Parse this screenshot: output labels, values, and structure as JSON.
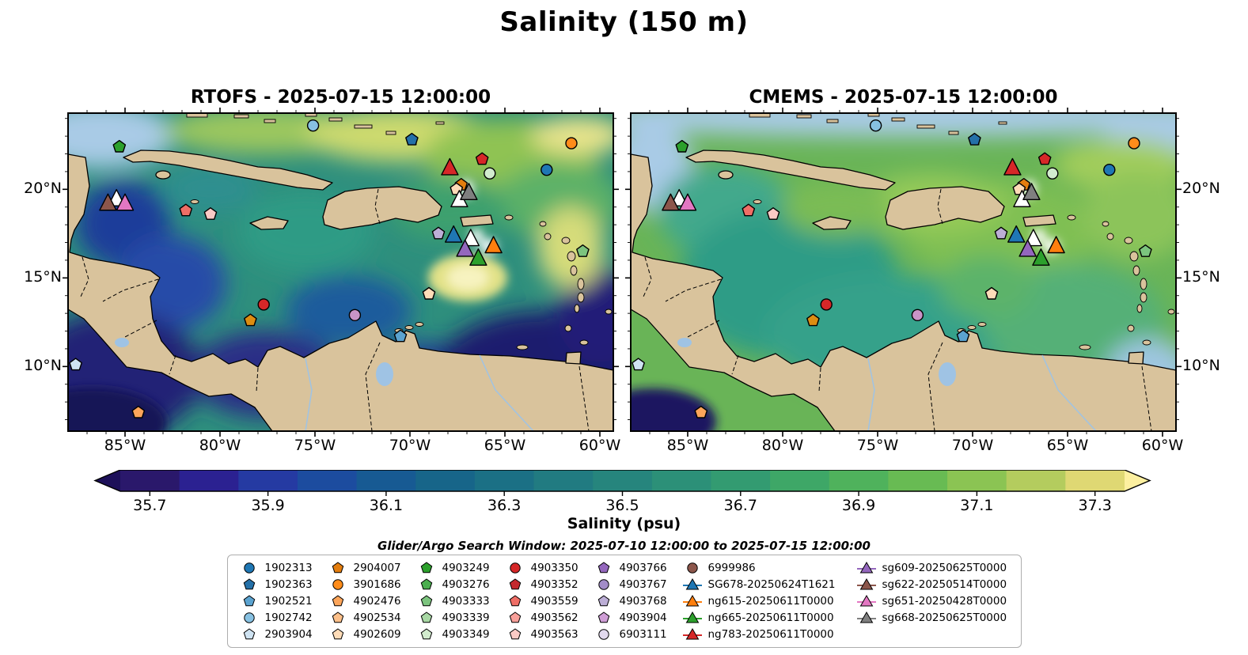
{
  "title": "Salinity (150 m)",
  "panels": [
    {
      "title": "RTOFS - 2025-07-15 12:00:00"
    },
    {
      "title": "CMEMS - 2025-07-15 12:00:00"
    }
  ],
  "axes": {
    "lat_ticks": [
      "20°N",
      "15°N",
      "10°N"
    ],
    "lon_ticks": [
      "85°W",
      "80°W",
      "75°W",
      "70°W",
      "65°W",
      "60°W"
    ]
  },
  "colorbar": {
    "label": "Salinity (psu)",
    "ticks": [
      "35.7",
      "35.9",
      "36.1",
      "36.3",
      "36.5",
      "36.7",
      "36.9",
      "37.1",
      "37.3"
    ],
    "segment_colors": [
      "#2a186b",
      "#2b2191",
      "#253aa2",
      "#1c4c9f",
      "#175a93",
      "#176589",
      "#1b7085",
      "#217b81",
      "#26857d",
      "#2c9078",
      "#339b71",
      "#3ea767",
      "#4fb25c",
      "#68bb53",
      "#8bc453",
      "#b4cc5e",
      "#dfd873"
    ],
    "under_color": "#1d1059",
    "over_color": "#fdf0a0"
  },
  "search_window": "Glider/Argo Search Window: 2025-07-10 12:00:00 to 2025-07-15 12:00:00",
  "legend": {
    "columns": [
      {
        "items": [
          {
            "label": "1902313",
            "marker": "circle",
            "color": "#1f77b4"
          },
          {
            "label": "1902363",
            "marker": "pentagon",
            "color": "#2470a8"
          },
          {
            "label": "1902521",
            "marker": "pentagon",
            "color": "#5ba3d0"
          },
          {
            "label": "1902742",
            "marker": "circle",
            "color": "#87c1e2"
          },
          {
            "label": "2903904",
            "marker": "pentagon",
            "color": "#cfe3f2"
          }
        ]
      },
      {
        "items": [
          {
            "label": "2904007",
            "marker": "pentagon",
            "color": "#e37d0e"
          },
          {
            "label": "3901686",
            "marker": "circle",
            "color": "#ff8c1a"
          },
          {
            "label": "4902476",
            "marker": "pentagon",
            "color": "#fca55a"
          },
          {
            "label": "4902534",
            "marker": "pentagon",
            "color": "#fdc08a"
          },
          {
            "label": "4902609",
            "marker": "pentagon",
            "color": "#fedcb8"
          }
        ]
      },
      {
        "items": [
          {
            "label": "4903249",
            "marker": "pentagon",
            "color": "#2ca02c"
          },
          {
            "label": "4903276",
            "marker": "pentagon",
            "color": "#4bae4f"
          },
          {
            "label": "4903333",
            "marker": "pentagon",
            "color": "#7cc47e"
          },
          {
            "label": "4903339",
            "marker": "pentagon",
            "color": "#a8d8a4"
          },
          {
            "label": "4903349",
            "marker": "pentagon",
            "color": "#d2ecce"
          }
        ]
      },
      {
        "items": [
          {
            "label": "4903350",
            "marker": "circle",
            "color": "#d62728"
          },
          {
            "label": "4903352",
            "marker": "pentagon",
            "color": "#c4292e"
          },
          {
            "label": "4903559",
            "marker": "pentagon",
            "color": "#ef6e66"
          },
          {
            "label": "4903562",
            "marker": "pentagon",
            "color": "#f79f99"
          },
          {
            "label": "4903563",
            "marker": "pentagon",
            "color": "#fbcac5"
          }
        ]
      },
      {
        "items": [
          {
            "label": "4903766",
            "marker": "pentagon",
            "color": "#9467bd"
          },
          {
            "label": "4903767",
            "marker": "circle",
            "color": "#a28cc8"
          },
          {
            "label": "4903768",
            "marker": "pentagon",
            "color": "#bcaed6"
          },
          {
            "label": "4903904",
            "marker": "pentagon",
            "color": "#cf9ed6"
          },
          {
            "label": "6903111",
            "marker": "circle",
            "color": "#e2d9ee"
          }
        ]
      },
      {
        "items": [
          {
            "label": "6999986",
            "marker": "circle",
            "color": "#8c564b"
          },
          {
            "label": "SG678-20250624T1621",
            "marker": "triangle-line",
            "color": "#1f77b4"
          },
          {
            "label": "ng615-20250611T0000",
            "marker": "triangle-line",
            "color": "#ff7f0e"
          },
          {
            "label": "ng665-20250611T0000",
            "marker": "triangle-line",
            "color": "#2ca02c"
          },
          {
            "label": "ng783-20250611T0000",
            "marker": "triangle-line",
            "color": "#d62728"
          }
        ]
      },
      {
        "items": [
          {
            "label": "sg609-20250625T0000",
            "marker": "triangle-line",
            "color": "#9467bd"
          },
          {
            "label": "sg622-20250514T0000",
            "marker": "triangle-line",
            "color": "#8c564b"
          },
          {
            "label": "sg651-20250428T0000",
            "marker": "triangle-line",
            "color": "#e377c2"
          },
          {
            "label": "sg668-20250625T0000",
            "marker": "triangle-line",
            "color": "#7f7f7f"
          }
        ]
      }
    ]
  },
  "chart_data": {
    "type": "heatmap",
    "title": "Salinity (150 m)",
    "variable": "Salinity (psu)",
    "panels": [
      {
        "model": "RTOFS",
        "valid_time": "2025-07-15 12:00:00",
        "title": "RTOFS - 2025-07-15 12:00:00"
      },
      {
        "model": "CMEMS",
        "valid_time": "2025-07-15 12:00:00",
        "title": "CMEMS - 2025-07-15 12:00:00"
      }
    ],
    "lon_ticks_deg_w": [
      85,
      80,
      75,
      70,
      65,
      60
    ],
    "lat_ticks_deg_n": [
      20,
      15,
      10
    ],
    "lon_range_deg": [
      -88,
      -59.3
    ],
    "lat_range_deg": [
      6.4,
      24.3
    ],
    "colorbar_ticks": [
      35.7,
      35.9,
      36.1,
      36.3,
      36.5,
      36.7,
      36.9,
      37.1,
      37.3
    ],
    "colorbar_range": [
      35.65,
      37.35
    ],
    "markers": [
      {
        "shape": "pentagon",
        "color": "#2ca02c",
        "lon": -85.3,
        "lat": 22.4
      },
      {
        "shape": "circle",
        "color": "#87c1e2",
        "lon": -75.1,
        "lat": 23.6
      },
      {
        "shape": "pentagon",
        "color": "#2470a8",
        "lon": -69.9,
        "lat": 22.8
      },
      {
        "shape": "circle",
        "color": "#ff8c1a",
        "lon": -61.5,
        "lat": 22.6
      },
      {
        "shape": "pentagon",
        "color": "#d62728",
        "lon": -66.2,
        "lat": 21.7
      },
      {
        "shape": "circle",
        "color": "#d2ecce",
        "lon": -65.8,
        "lat": 20.9
      },
      {
        "shape": "circle",
        "color": "#1f77b4",
        "lon": -62.8,
        "lat": 21.1
      },
      {
        "shape": "pentagon",
        "color": "#e37d0e",
        "lon": -67.3,
        "lat": 20.25
      },
      {
        "shape": "pentagon",
        "color": "#fedcb8",
        "lon": -67.55,
        "lat": 20.0
      },
      {
        "shape": "pentagon",
        "color": "#ef6e66",
        "lon": -81.8,
        "lat": 18.8
      },
      {
        "shape": "pentagon",
        "color": "#fbcac5",
        "lon": -80.5,
        "lat": 18.6
      },
      {
        "shape": "pentagon",
        "color": "#bcaed6",
        "lon": -68.5,
        "lat": 17.5
      },
      {
        "shape": "pentagon",
        "color": "#7cc47e",
        "lon": -60.9,
        "lat": 16.5
      },
      {
        "shape": "pentagon",
        "color": "#fedcb8",
        "lon": -69.0,
        "lat": 14.1
      },
      {
        "shape": "circle",
        "color": "#d62728",
        "lon": -77.7,
        "lat": 13.5
      },
      {
        "shape": "pentagon",
        "color": "#dd8d12",
        "lon": -78.4,
        "lat": 12.6
      },
      {
        "shape": "circle",
        "color": "#c994c7",
        "lon": -72.9,
        "lat": 12.9
      },
      {
        "shape": "pentagon",
        "color": "#5ba3d0",
        "lon": -70.5,
        "lat": 11.7
      },
      {
        "shape": "pentagon",
        "color": "#cfe3f2",
        "lon": -87.6,
        "lat": 10.1
      },
      {
        "shape": "pentagon",
        "color": "#fca55a",
        "lon": -84.3,
        "lat": 7.4
      },
      {
        "shape": "triangle",
        "color": "#ffffff",
        "lon": -85.45,
        "lat": 19.45
      },
      {
        "shape": "triangle",
        "color": "#8c564b",
        "lon": -85.9,
        "lat": 19.2,
        "name": "sg622"
      },
      {
        "shape": "triangle",
        "color": "#e377c2",
        "lon": -85.0,
        "lat": 19.2,
        "name": "sg651"
      },
      {
        "shape": "triangle",
        "color": "#d62728",
        "lon": -67.9,
        "lat": 21.2,
        "name": "ng783"
      },
      {
        "shape": "triangle",
        "color": "#ffffff",
        "lon": -67.4,
        "lat": 19.4
      },
      {
        "shape": "triangle",
        "color": "#7f7f7f",
        "lon": -66.9,
        "lat": 19.8,
        "name": "sg668"
      },
      {
        "shape": "triangle",
        "color": "#1f77b4",
        "lon": -67.7,
        "lat": 17.4,
        "name": "SG678"
      },
      {
        "shape": "triangle",
        "color": "#ffffff",
        "lon": -66.8,
        "lat": 17.2
      },
      {
        "shape": "triangle",
        "color": "#9467bd",
        "lon": -67.1,
        "lat": 16.6,
        "name": "sg609"
      },
      {
        "shape": "triangle",
        "color": "#ff7f0e",
        "lon": -65.6,
        "lat": 16.8,
        "name": "ng615"
      },
      {
        "shape": "triangle",
        "color": "#2ca02c",
        "lon": -66.4,
        "lat": 16.1,
        "name": "ng665"
      }
    ]
  }
}
